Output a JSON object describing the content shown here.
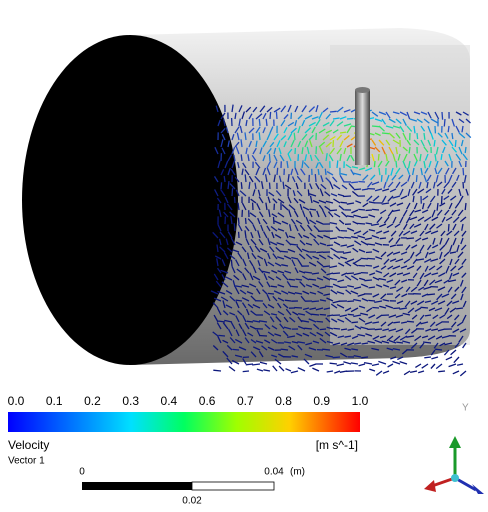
{
  "legend": {
    "ticks": [
      "0.0",
      "0.1",
      "0.2",
      "0.3",
      "0.4",
      "0.6",
      "0.7",
      "0.8",
      "0.9",
      "1.0"
    ],
    "title": "Velocity",
    "subtitle": "Vector 1",
    "unit": "[m s^-1]"
  },
  "scale_bar": {
    "start": "0",
    "end": "0.04",
    "unit": "(m)",
    "middle": "0.02"
  },
  "triad": {
    "y_axis": "Y"
  }
}
